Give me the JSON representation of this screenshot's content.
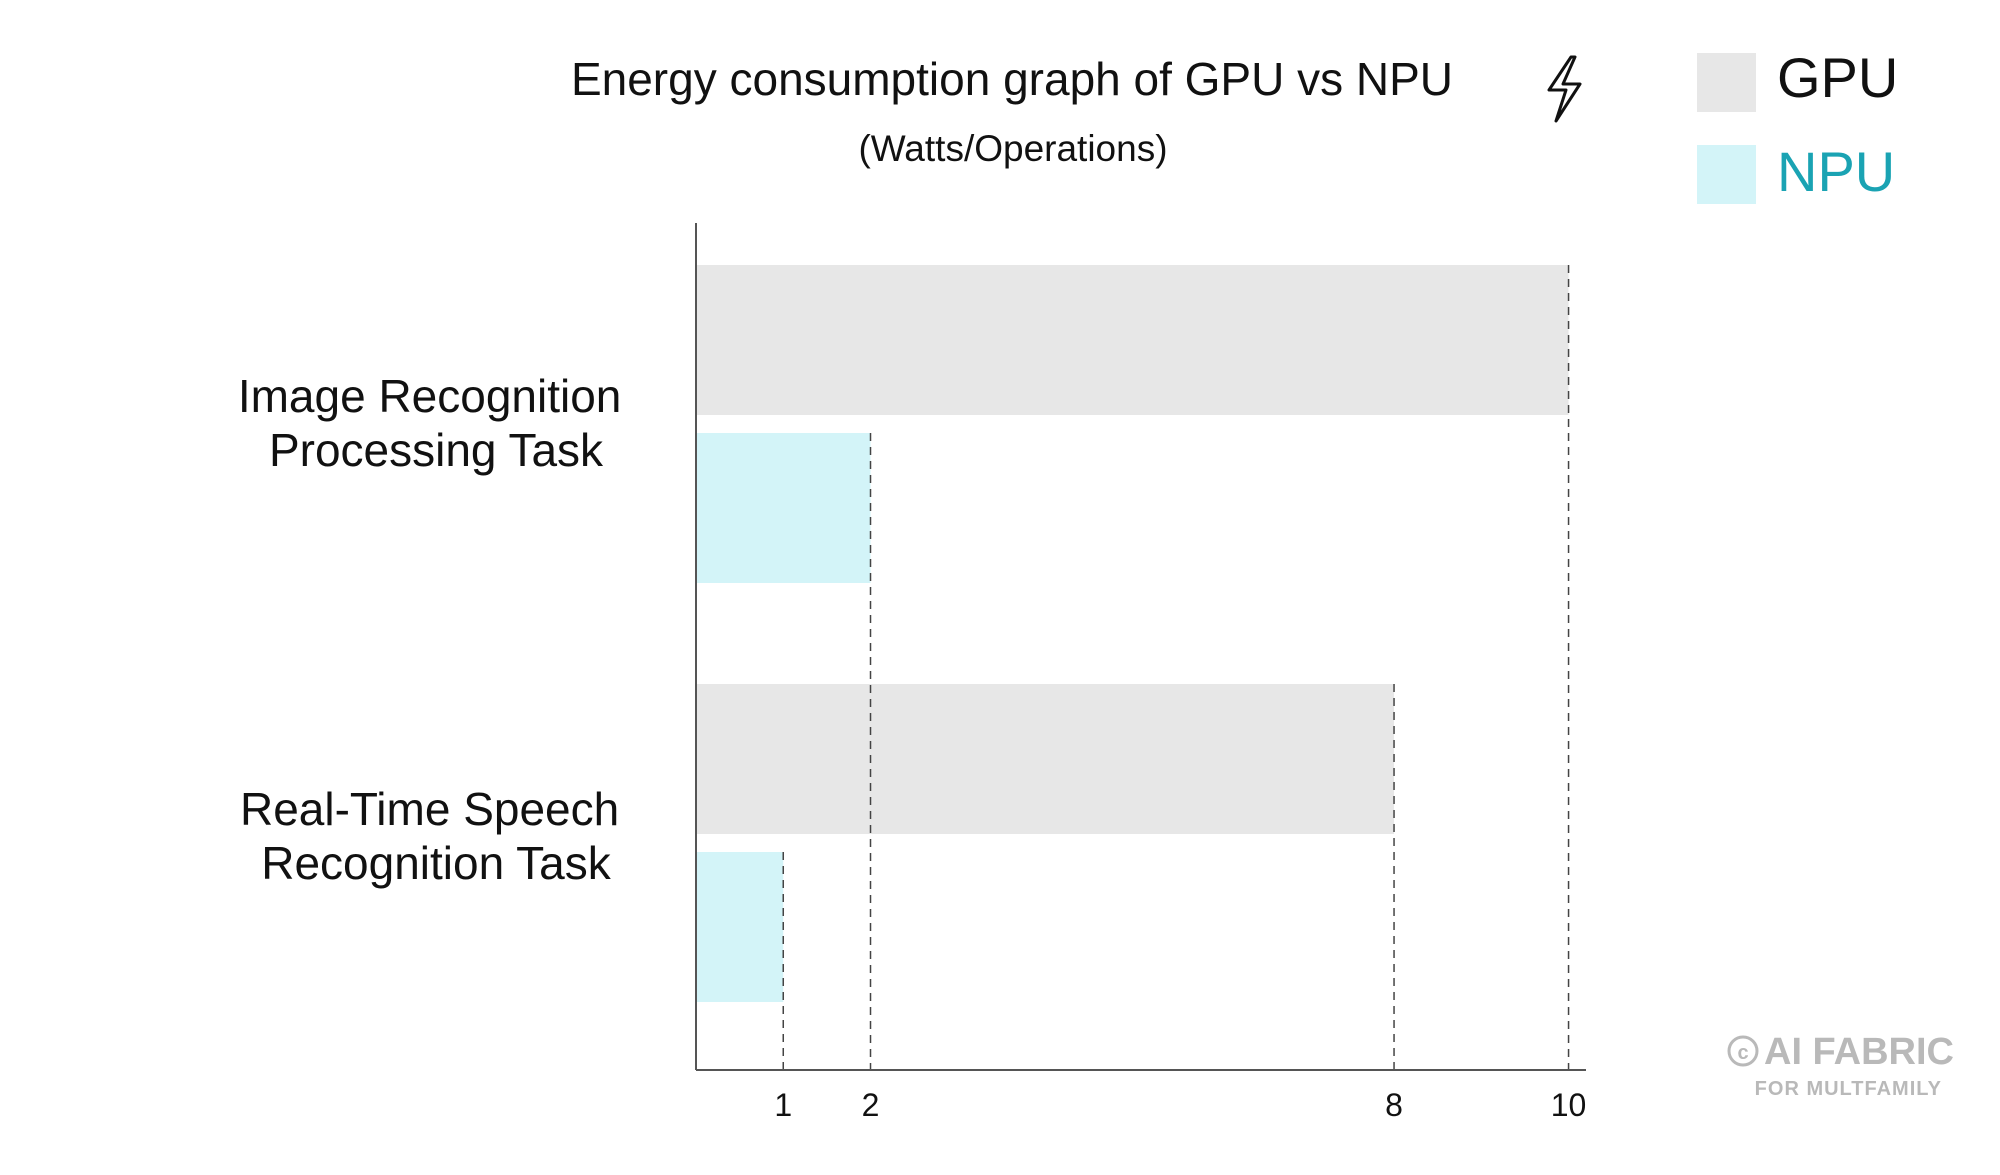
{
  "colors": {
    "gpu": "#e7e7e7",
    "npu": "#d3f4f8",
    "npu_legend_text": "#1aa3b3",
    "text": "#111111",
    "axis": "#555555",
    "watermark": "#b9b9b9"
  },
  "chart_data": {
    "type": "bar",
    "orientation": "horizontal",
    "title": "Energy consumption graph of GPU vs NPU",
    "title_icon": "lightning-bolt-icon",
    "subtitle": "(Watts/Operations)",
    "xlabel": "",
    "ylabel": "",
    "xlim": [
      0,
      10.2
    ],
    "grid": false,
    "legend_position": "top-right",
    "categories": [
      "Image Recognition\nProcessing Task",
      "Real-Time Speech\nRecognition Task"
    ],
    "series": [
      {
        "name": "GPU",
        "values": [
          10,
          8
        ]
      },
      {
        "name": "NPU",
        "values": [
          2,
          1
        ]
      }
    ],
    "x_ticks": [
      1,
      2,
      8,
      10
    ],
    "reference_lines": [
      1,
      2,
      8,
      10
    ]
  },
  "watermark": {
    "symbol": "©",
    "line1": "AI FABRIC",
    "line2": "FOR MULTFAMILY"
  }
}
